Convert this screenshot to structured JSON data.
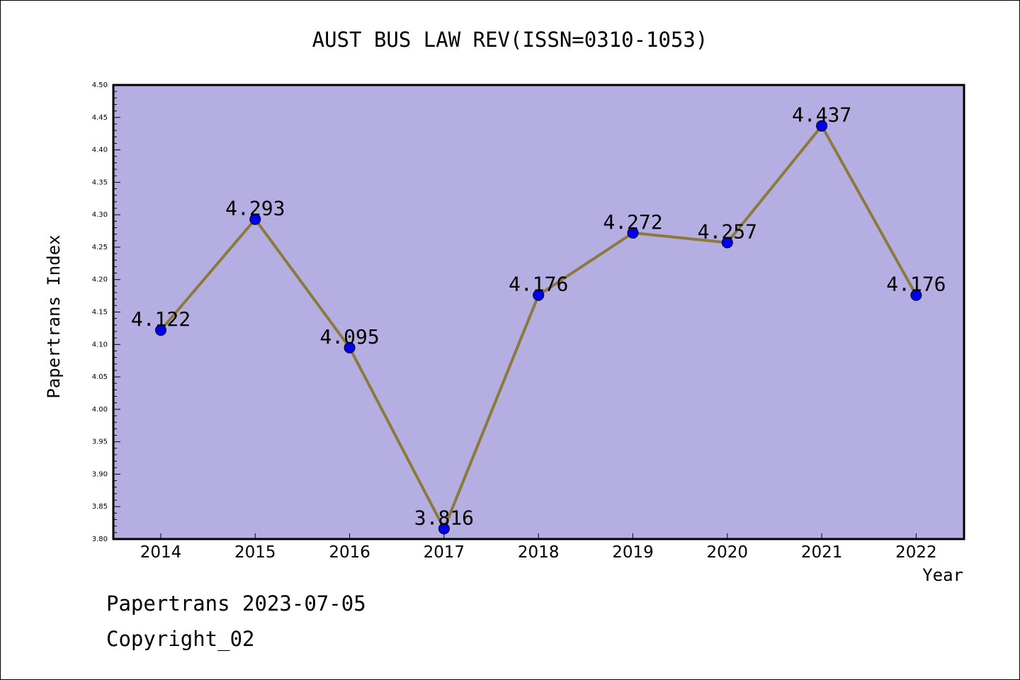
{
  "chart_data": {
    "type": "line",
    "title": "AUST BUS LAW REV(ISSN=0310-1053)",
    "xlabel": "Year",
    "ylabel": "Papertrans Index",
    "categories": [
      "2014",
      "2015",
      "2016",
      "2017",
      "2018",
      "2019",
      "2020",
      "2021",
      "2022"
    ],
    "values": [
      4.122,
      4.293,
      4.095,
      3.816,
      4.176,
      4.272,
      4.257,
      4.437,
      4.176
    ],
    "data_labels": [
      "4.122",
      "4.293",
      "4.095",
      "3.816",
      "4.176",
      "4.272",
      "4.257",
      "4.437",
      "4.176"
    ],
    "ylim": [
      3.8,
      4.5
    ],
    "yticks": [
      "3.80",
      "3.85",
      "3.90",
      "3.95",
      "4.00",
      "4.05",
      "4.10",
      "4.15",
      "4.20",
      "4.25",
      "4.30",
      "4.35",
      "4.40",
      "4.45",
      "4.50"
    ],
    "grid": false,
    "legend": "none",
    "colors": {
      "plot_background": "#b5aee2",
      "line": "#8b7a3c",
      "marker": "#0000ee"
    }
  },
  "footer": {
    "date_line": "Papertrans 2023-07-05",
    "copyright_line": "Copyright_02"
  }
}
